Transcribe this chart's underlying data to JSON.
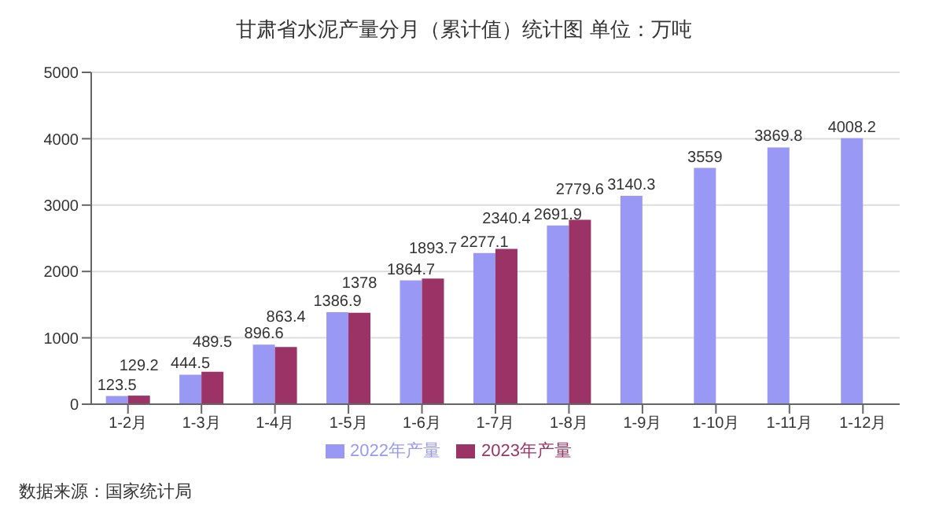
{
  "chart_data": {
    "type": "bar",
    "title": "甘肃省水泥产量分月（累计值）统计图 单位：万吨",
    "categories": [
      "1-2月",
      "1-3月",
      "1-4月",
      "1-5月",
      "1-6月",
      "1-7月",
      "1-8月",
      "1-9月",
      "1-10月",
      "1-11月",
      "1-12月"
    ],
    "series": [
      {
        "name": "2022年产量",
        "color": "#9999f5",
        "values": [
          123.5,
          444.5,
          896.6,
          1386.9,
          1864.7,
          2277.1,
          2691.9,
          3140.3,
          3559,
          3869.8,
          4008.2
        ]
      },
      {
        "name": "2023年产量",
        "color": "#9b3366",
        "values": [
          129.2,
          489.5,
          863.4,
          1378,
          1893.7,
          2340.4,
          2779.6,
          null,
          null,
          null,
          null
        ]
      }
    ],
    "ylim": [
      0,
      5000
    ],
    "yticks": [
      0,
      1000,
      2000,
      3000,
      4000,
      5000
    ],
    "grid": "y",
    "legend": "bottom",
    "data_labels": true,
    "annotations": [
      "数据来源：国家统计局"
    ]
  }
}
